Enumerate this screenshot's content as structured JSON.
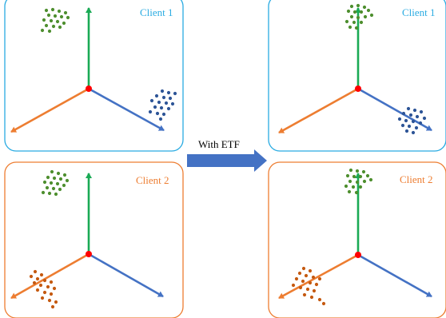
{
  "colors": {
    "client1_frame": "#29ABE2",
    "client2_frame": "#ED7D31",
    "axis_up": "#1AAA55",
    "axis_left": "#ED7D31",
    "axis_right": "#4472C4",
    "origin": "#FF0000",
    "green_cluster": "#4E8F2F",
    "blue_cluster": "#2E5597",
    "orange_cluster": "#C55A11",
    "transition_arrow": "#4472C4",
    "text": "#000000"
  },
  "panels": [
    {
      "id": "before-client1",
      "label": "Client 1",
      "frame": "client1",
      "clusters": [
        "green",
        "blue"
      ],
      "aligned": false
    },
    {
      "id": "before-client2",
      "label": "Client 2",
      "frame": "client2",
      "clusters": [
        "green",
        "orange"
      ],
      "aligned": false
    },
    {
      "id": "after-client1",
      "label": "Client 1",
      "frame": "client1",
      "clusters": [
        "green",
        "blue"
      ],
      "aligned": true
    },
    {
      "id": "after-client2",
      "label": "Client 2",
      "frame": "client2",
      "clusters": [
        "green",
        "orange"
      ],
      "aligned": true
    }
  ],
  "transition": {
    "label": "With ETF"
  }
}
